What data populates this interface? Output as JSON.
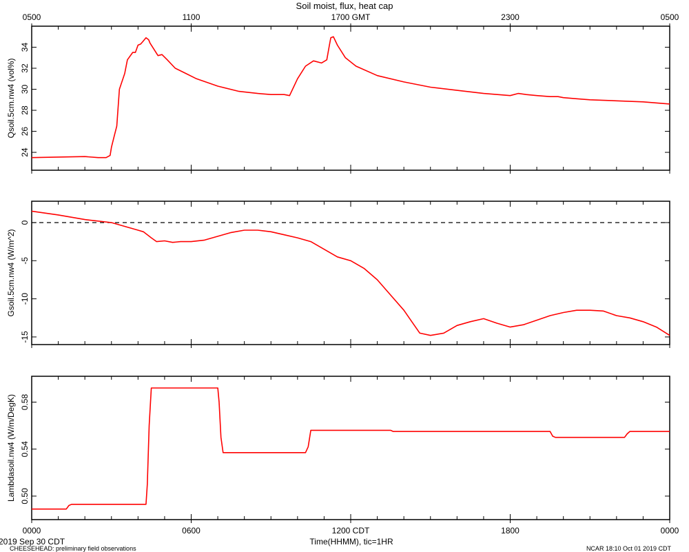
{
  "page": {
    "title": "Soil moist, flux, heat cap",
    "date_label": "2019 Sep 30 CDT",
    "project_note": "CHEESEHEAD: preliminary field observations",
    "credit": "NCAR 18:10 Oct 01 2019 CDT",
    "x_axis_label": "Time(HHMM), tic=1HR"
  },
  "colors": {
    "series": "#ff0000",
    "axes": "#000000",
    "zero_line": "#000000"
  },
  "chart_data": [
    {
      "type": "line",
      "ylabel": "Qsoil.5cm.nw4 (vol%)",
      "ylim": [
        22.3,
        36.0
      ],
      "yticks": [
        24,
        26,
        28,
        30,
        32,
        34
      ],
      "xlim": [
        0,
        24
      ],
      "top_axis_ticks": [
        {
          "x": 0,
          "label": "0500"
        },
        {
          "x": 6,
          "label": "1100"
        },
        {
          "x": 12,
          "label": "1700 GMT"
        },
        {
          "x": 18,
          "label": "2300"
        },
        {
          "x": 24,
          "label": "0500"
        }
      ],
      "series": [
        {
          "x": [
            0,
            1,
            2,
            2.5,
            2.8,
            2.95,
            3.0,
            3.1,
            3.2,
            3.3,
            3.5,
            3.6,
            3.8,
            3.9,
            4.0,
            4.1,
            4.2,
            4.3,
            4.4,
            4.45,
            4.6,
            4.75,
            4.9,
            5.1,
            5.4,
            5.8,
            6.2,
            7.0,
            7.8,
            8.5,
            9.0,
            9.5,
            9.7,
            10.0,
            10.3,
            10.6,
            10.9,
            11.1,
            11.2,
            11.25,
            11.35,
            11.5,
            11.8,
            12.2,
            13.0,
            14.0,
            15.0,
            16.0,
            17.0,
            18.0,
            18.3,
            18.6,
            19.0,
            19.5,
            19.8,
            20.0,
            20.5,
            21.0,
            22.0,
            23.0,
            24.0
          ],
          "y": [
            23.5,
            23.55,
            23.6,
            23.5,
            23.5,
            23.7,
            24.5,
            25.5,
            26.5,
            30.0,
            31.5,
            32.8,
            33.5,
            33.5,
            34.2,
            34.3,
            34.6,
            34.9,
            34.7,
            34.4,
            33.8,
            33.2,
            33.3,
            32.8,
            32.0,
            31.5,
            31.0,
            30.3,
            29.8,
            29.6,
            29.5,
            29.5,
            29.4,
            31.0,
            32.2,
            32.7,
            32.5,
            32.8,
            34.2,
            34.9,
            35.0,
            34.2,
            33.0,
            32.2,
            31.3,
            30.7,
            30.2,
            29.9,
            29.6,
            29.4,
            29.6,
            29.5,
            29.4,
            29.3,
            29.3,
            29.2,
            29.1,
            29.0,
            28.9,
            28.8,
            28.6
          ]
        }
      ]
    },
    {
      "type": "line",
      "ylabel": "Gsoil.5cm.nw4 (W/m^2)",
      "ylim": [
        -16.0,
        2.8
      ],
      "yticks": [
        0,
        -5,
        -10,
        -15
      ],
      "xlim": [
        0,
        24
      ],
      "zero_line": true,
      "series": [
        {
          "x": [
            0,
            1,
            2,
            2.5,
            3,
            3.5,
            4,
            4.2,
            4.5,
            4.7,
            5,
            5.3,
            5.6,
            6,
            6.5,
            7,
            7.5,
            8,
            8.5,
            9,
            9.5,
            10,
            10.5,
            11,
            11.5,
            12,
            12.5,
            13,
            13.5,
            14,
            14.3,
            14.6,
            15,
            15.5,
            16,
            16.5,
            17,
            17.5,
            18,
            18.5,
            19,
            19.5,
            20,
            20.5,
            21,
            21.5,
            22,
            22.5,
            23,
            23.5,
            24
          ],
          "y": [
            1.5,
            1.0,
            0.4,
            0.2,
            0.0,
            -0.5,
            -1.0,
            -1.2,
            -2.0,
            -2.5,
            -2.4,
            -2.6,
            -2.5,
            -2.5,
            -2.3,
            -1.8,
            -1.3,
            -1.0,
            -1.0,
            -1.2,
            -1.6,
            -2.0,
            -2.5,
            -3.5,
            -4.5,
            -5.0,
            -6.0,
            -7.5,
            -9.5,
            -11.5,
            -13.0,
            -14.5,
            -14.8,
            -14.5,
            -13.5,
            -13.0,
            -12.6,
            -13.2,
            -13.7,
            -13.4,
            -12.8,
            -12.2,
            -11.8,
            -11.5,
            -11.5,
            -11.6,
            -12.2,
            -12.5,
            -13.0,
            -13.7,
            -14.8
          ]
        }
      ]
    },
    {
      "type": "line",
      "ylabel": "Lambdasoil.nw4 (W/m/DegK)",
      "ylim": [
        0.48,
        0.602
      ],
      "yticks": [
        0.5,
        0.54,
        0.58
      ],
      "xlim": [
        0,
        24
      ],
      "xticks": [
        {
          "x": 0,
          "label": "0000"
        },
        {
          "x": 6,
          "label": "0600"
        },
        {
          "x": 12,
          "label": "1200 CDT"
        },
        {
          "x": 18,
          "label": "1800"
        },
        {
          "x": 24,
          "label": "0000"
        }
      ],
      "series": [
        {
          "x": [
            0,
            1.3,
            1.4,
            1.5,
            2.0,
            4.3,
            4.35,
            4.42,
            4.5,
            5.0,
            7.0,
            7.05,
            7.12,
            7.2,
            8.0,
            10.3,
            10.4,
            10.5,
            10.6,
            11.0,
            13.5,
            13.6,
            14.0,
            19.5,
            19.6,
            19.7,
            20.0,
            22.3,
            22.4,
            22.5,
            24.0
          ],
          "y": [
            0.489,
            0.489,
            0.492,
            0.493,
            0.493,
            0.493,
            0.51,
            0.56,
            0.592,
            0.592,
            0.592,
            0.58,
            0.55,
            0.537,
            0.537,
            0.537,
            0.542,
            0.556,
            0.556,
            0.556,
            0.556,
            0.555,
            0.555,
            0.555,
            0.551,
            0.55,
            0.55,
            0.55,
            0.553,
            0.555,
            0.555
          ]
        }
      ]
    }
  ]
}
